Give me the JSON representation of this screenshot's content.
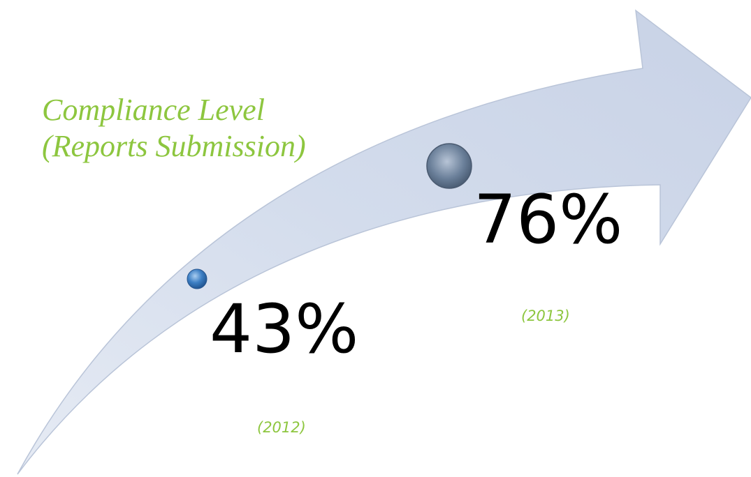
{
  "title": {
    "line1": "Compliance Level",
    "line2": "(Reports Submission)"
  },
  "milestones": [
    {
      "value": "43%",
      "year": "(2012)"
    },
    {
      "value": "76%",
      "year": "(2013)"
    }
  ]
}
